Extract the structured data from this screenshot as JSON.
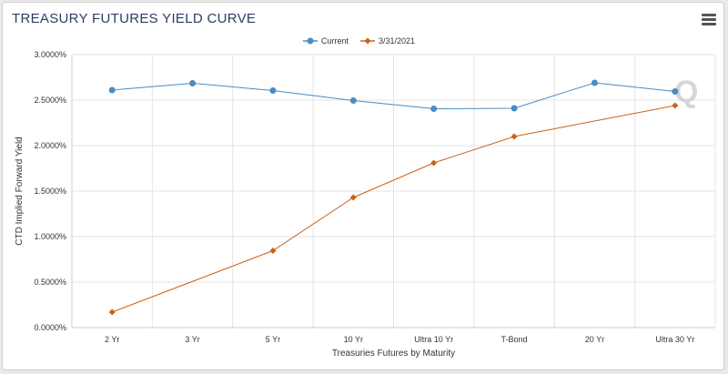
{
  "header": {
    "title": "TREASURY FUTURES YIELD CURVE",
    "menu_icon": "hamburger-menu-icon"
  },
  "chart_data": {
    "type": "line",
    "categories": [
      "2 Yr",
      "3 Yr",
      "5 Yr",
      "10 Yr",
      "Ultra 10 Yr",
      "T-Bond",
      "20 Yr",
      "Ultra 30 Yr"
    ],
    "series": [
      {
        "name": "Current",
        "color": "#4a8bc2",
        "marker": "circle",
        "values": [
          2.61,
          2.685,
          2.605,
          2.495,
          2.405,
          2.41,
          2.69,
          2.595
        ]
      },
      {
        "name": "3/31/2021",
        "color": "#c8621a",
        "marker": "diamond",
        "values": [
          0.17,
          null,
          0.845,
          1.43,
          1.81,
          2.1,
          null,
          2.44
        ]
      }
    ],
    "yticks": [
      "0.0000%",
      "0.5000%",
      "1.0000%",
      "1.5000%",
      "2.0000%",
      "2.5000%",
      "3.0000%"
    ],
    "ylim": [
      0,
      3
    ],
    "xlabel": "Treasuries Futures by Maturity",
    "ylabel": "CTD Implied Forward Yield",
    "grid": true,
    "legend": "top-center"
  },
  "watermark": {
    "letter": "Q",
    "color": "#c9ced3"
  }
}
